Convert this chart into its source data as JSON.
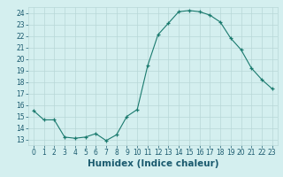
{
  "x": [
    0,
    1,
    2,
    3,
    4,
    5,
    6,
    7,
    8,
    9,
    10,
    11,
    12,
    13,
    14,
    15,
    16,
    17,
    18,
    19,
    20,
    21,
    22,
    23
  ],
  "y": [
    15.5,
    14.7,
    14.7,
    13.2,
    13.1,
    13.2,
    13.5,
    12.9,
    13.4,
    15.0,
    15.6,
    19.4,
    22.1,
    23.1,
    24.1,
    24.2,
    24.1,
    23.8,
    23.2,
    21.8,
    20.8,
    19.2,
    18.2,
    17.4
  ],
  "xlabel": "Humidex (Indice chaleur)",
  "xlim": [
    -0.5,
    23.5
  ],
  "ylim": [
    12.5,
    24.5
  ],
  "yticks": [
    13,
    14,
    15,
    16,
    17,
    18,
    19,
    20,
    21,
    22,
    23,
    24
  ],
  "xticks": [
    0,
    1,
    2,
    3,
    4,
    5,
    6,
    7,
    8,
    9,
    10,
    11,
    12,
    13,
    14,
    15,
    16,
    17,
    18,
    19,
    20,
    21,
    22,
    23
  ],
  "line_color": "#1a7a6e",
  "marker": "+",
  "bg_color": "#d4efef",
  "grid_color": "#b8d8d8",
  "label_color": "#1a5a6e",
  "tick_label_color": "#1a5a6e",
  "tick_fontsize": 5.5,
  "xlabel_fontsize": 7.5
}
